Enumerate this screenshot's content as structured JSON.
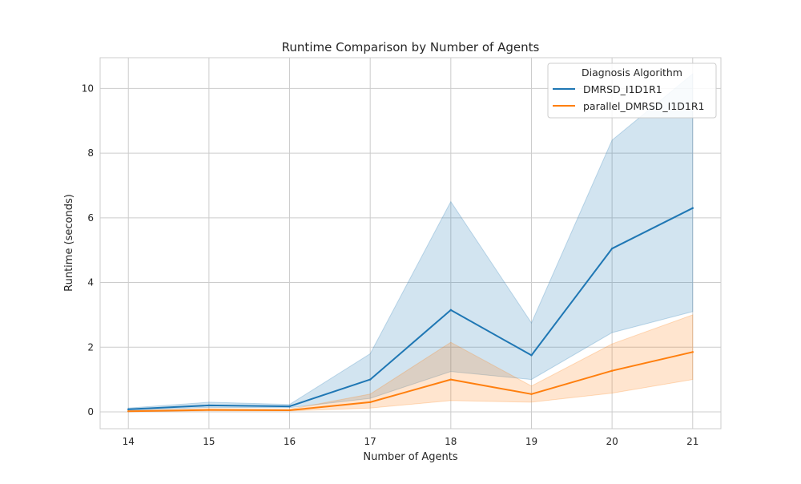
{
  "chart_data": {
    "type": "line",
    "title": "Runtime Comparison by Number of Agents",
    "xlabel": "Number of Agents",
    "ylabel": "Runtime (seconds)",
    "x": [
      14,
      15,
      16,
      17,
      18,
      19,
      20,
      21
    ],
    "xlim": [
      13.65,
      21.35
    ],
    "ylim": [
      -0.52,
      10.95
    ],
    "yticks": [
      0,
      2,
      4,
      6,
      8,
      10
    ],
    "grid": true,
    "legend": {
      "title": "Diagnosis Algorithm",
      "placement": "upper right"
    },
    "series": [
      {
        "name": "DMRSD_I1D1R1",
        "color": "#1f77b4",
        "values": [
          0.08,
          0.2,
          0.17,
          1.0,
          3.15,
          1.75,
          5.05,
          6.3
        ],
        "ci_low": [
          0.05,
          0.14,
          0.13,
          0.42,
          1.25,
          1.0,
          2.45,
          3.1
        ],
        "ci_high": [
          0.12,
          0.3,
          0.23,
          1.8,
          6.5,
          2.75,
          8.4,
          10.45
        ]
      },
      {
        "name": "parallel_DMRSD_I1D1R1",
        "color": "#ff7f0e",
        "values": [
          0.02,
          0.06,
          0.05,
          0.3,
          1.0,
          0.55,
          1.27,
          1.85
        ],
        "ci_low": [
          0.01,
          0.03,
          0.03,
          0.12,
          0.35,
          0.3,
          0.58,
          1.0
        ],
        "ci_high": [
          0.04,
          0.1,
          0.08,
          0.55,
          2.15,
          0.8,
          2.1,
          3.0
        ]
      }
    ]
  }
}
